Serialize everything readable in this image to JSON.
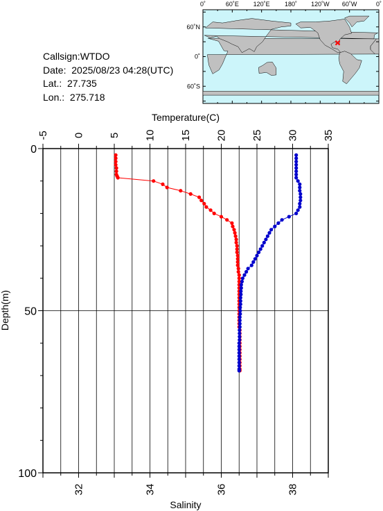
{
  "info": {
    "callsign": "Callsign:WTDO",
    "date": "Date:  2025/08/23 04:28(UTC)",
    "lat": "Lat.:  27.735",
    "lon": "Lon.:  275.718"
  },
  "map": {
    "top_ticks": [
      "0˚",
      "60˚E",
      "120˚E",
      "180˚",
      "120˚W",
      "60˚W",
      "0˚"
    ],
    "left_ticks": [
      "60˚N",
      "0˚",
      "60˚S"
    ],
    "colors": {
      "ocean": "#ccf5fa",
      "land": "#c0c0c0",
      "marker": "#ff0000"
    },
    "marker_lat": 27.735,
    "marker_lon": 275.718
  },
  "chart_data": {
    "type": "line",
    "top_axis_label": "Temperature(C)",
    "bottom_axis_label": "Salinity",
    "left_axis_label": "Depth(m)",
    "temperature_axis": {
      "min": -5,
      "max": 35,
      "ticks": [
        -5,
        0,
        5,
        10,
        15,
        20,
        25,
        30,
        35
      ]
    },
    "salinity_axis": {
      "min": 31,
      "max": 39,
      "ticks": [
        32,
        34,
        36,
        38
      ]
    },
    "depth_axis": {
      "min": 0,
      "max": 100,
      "ticks": [
        0,
        50,
        100
      ],
      "inverted": true
    },
    "grid": true,
    "series": [
      {
        "quantity": "temperature",
        "color": "#ff0000",
        "depth": [
          2,
          3,
          4,
          5,
          6,
          7,
          8,
          8.5,
          9,
          10,
          11,
          12,
          13,
          14,
          15,
          16,
          17,
          18,
          19,
          20,
          21,
          22,
          23,
          24,
          25,
          26,
          27,
          28,
          29,
          30,
          31,
          32,
          33,
          34,
          35,
          36,
          37,
          38,
          39,
          40,
          41,
          42,
          43,
          44,
          45,
          46,
          47,
          48,
          49,
          50,
          51,
          52,
          53,
          54,
          55,
          56,
          57,
          58,
          59,
          60,
          61,
          62,
          63,
          64,
          65,
          66,
          67,
          68,
          68.5
        ],
        "temperature": [
          5.2,
          5.2,
          5.2,
          5.2,
          5.3,
          5.3,
          5.3,
          5.4,
          5.5,
          10.5,
          11.8,
          12.4,
          14.3,
          15.7,
          16.9,
          17.2,
          17.6,
          17.9,
          18.5,
          19.0,
          20.0,
          20.8,
          21.5,
          21.6,
          21.8,
          21.9,
          22.0,
          22.1,
          22.1,
          22.2,
          22.2,
          22.2,
          22.3,
          22.3,
          22.3,
          22.3,
          22.4,
          22.4,
          22.5,
          22.5,
          22.5,
          22.5,
          22.5,
          22.5,
          22.5,
          22.5,
          22.5,
          22.5,
          22.5,
          22.5,
          22.5,
          22.5,
          22.5,
          22.5,
          22.5,
          22.6,
          22.6,
          22.6,
          22.6,
          22.6,
          22.6,
          22.6,
          22.6,
          22.6,
          22.6,
          22.6,
          22.6,
          22.6,
          22.6
        ]
      },
      {
        "quantity": "salinity",
        "color": "#0000cc",
        "depth": [
          2,
          3,
          4,
          5,
          6,
          7,
          8,
          9,
          10,
          11,
          12,
          13,
          14,
          15,
          16,
          17,
          18,
          19,
          20,
          21,
          22,
          23,
          24,
          25,
          26,
          27,
          28,
          29,
          30,
          31,
          32,
          33,
          34,
          35,
          36,
          37,
          38,
          39,
          40,
          41,
          42,
          43,
          44,
          45,
          46,
          47,
          48,
          49,
          50,
          51,
          52,
          53,
          54,
          55,
          56,
          57,
          58,
          59,
          60,
          61,
          62,
          63,
          64,
          65,
          66,
          67,
          68,
          68.5
        ],
        "salinity": [
          38.1,
          38.1,
          38.1,
          38.1,
          38.1,
          38.1,
          38.1,
          38.1,
          38.15,
          38.2,
          38.2,
          38.2,
          38.22,
          38.22,
          38.22,
          38.2,
          38.2,
          38.15,
          38.1,
          37.9,
          37.7,
          37.6,
          37.5,
          37.4,
          37.35,
          37.3,
          37.25,
          37.2,
          37.15,
          37.1,
          37.05,
          37.0,
          36.95,
          36.9,
          36.85,
          36.75,
          36.7,
          36.65,
          36.6,
          36.58,
          36.56,
          36.56,
          36.55,
          36.55,
          36.54,
          36.54,
          36.54,
          36.53,
          36.53,
          36.53,
          36.52,
          36.52,
          36.52,
          36.52,
          36.51,
          36.51,
          36.51,
          36.51,
          36.5,
          36.5,
          36.5,
          36.5,
          36.5,
          36.5,
          36.5,
          36.5,
          36.5,
          36.5
        ]
      }
    ]
  }
}
